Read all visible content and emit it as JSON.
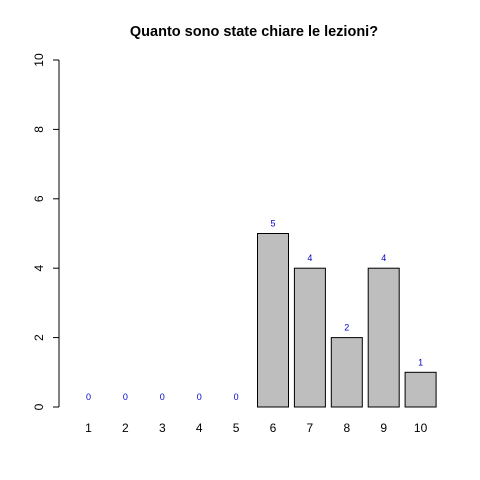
{
  "chart_data": {
    "type": "bar",
    "title": "Quanto sono state chiare le lezioni?",
    "xlabel": "",
    "ylabel": "",
    "categories": [
      "1",
      "2",
      "3",
      "4",
      "5",
      "6",
      "7",
      "8",
      "9",
      "10"
    ],
    "values": [
      0,
      0,
      0,
      0,
      0,
      5,
      4,
      2,
      4,
      1
    ],
    "value_labels": [
      "0",
      "0",
      "0",
      "0",
      "0",
      "5",
      "4",
      "2",
      "4",
      "1"
    ],
    "ylim": [
      0,
      10
    ],
    "yticks": [
      0,
      2,
      4,
      6,
      8,
      10
    ],
    "ytick_labels": [
      "0",
      "2",
      "4",
      "6",
      "8",
      "10"
    ],
    "grid": false,
    "legend": "none",
    "colors": {
      "bar_fill": "#bebebe",
      "bar_stroke": "#000000",
      "value_label": "#0000cc",
      "text": "#000000"
    }
  }
}
